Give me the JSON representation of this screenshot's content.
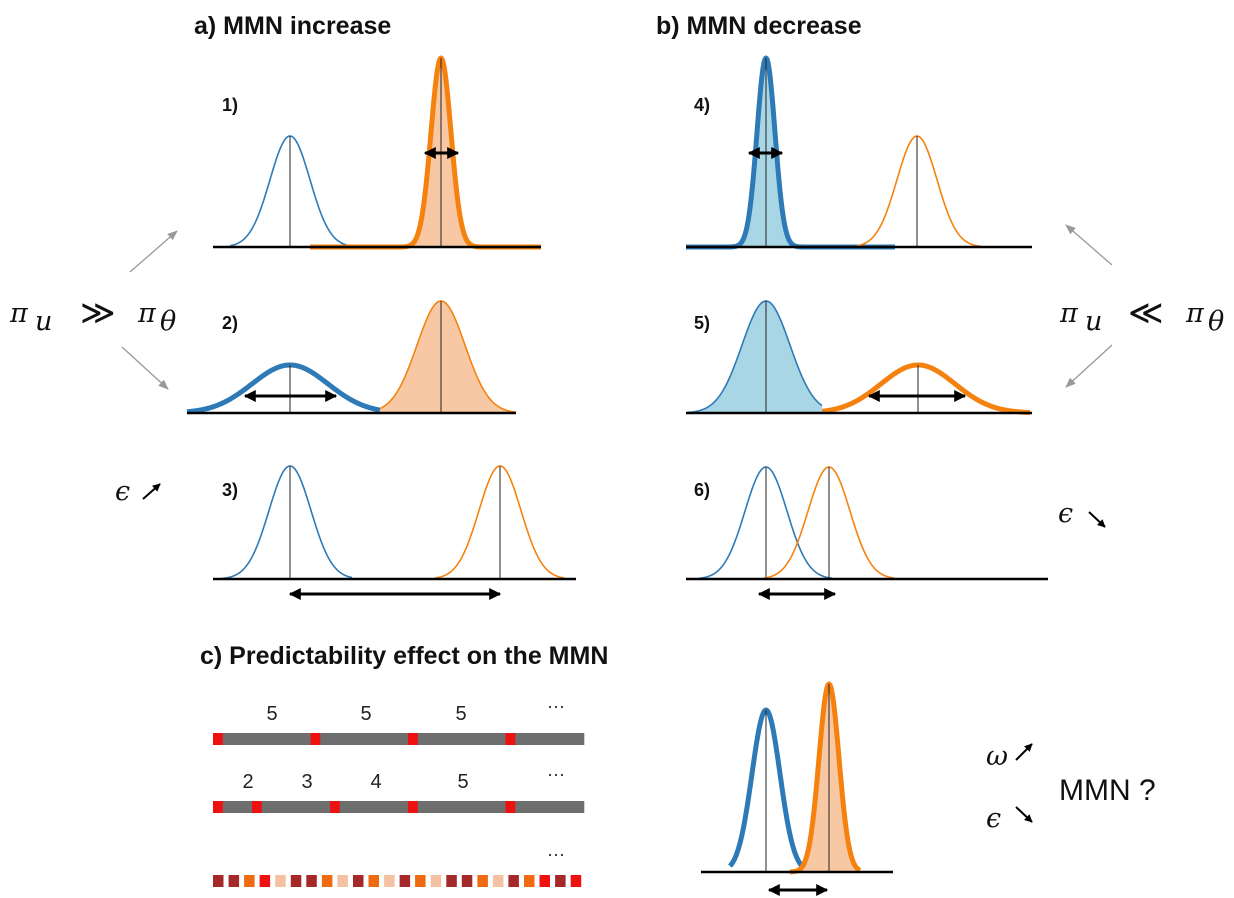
{
  "headings": {
    "a": "a) MMN increase",
    "b": "b) MMN decrease",
    "c": "c) Predictability effect on the MMN"
  },
  "panel_labels": [
    "1)",
    "2)",
    "3)",
    "4)",
    "5)",
    "6)"
  ],
  "math": {
    "left": {
      "pi_u": "π",
      "sub_u": "u",
      "relation": "≫",
      "pi_theta": "π",
      "sub_theta": "θ",
      "epsilon": "ϵ",
      "epsilon_arrow": "up"
    },
    "right": {
      "pi_u": "π",
      "sub_u": "u",
      "relation": "≪",
      "pi_theta": "π",
      "sub_theta": "θ",
      "epsilon": "ϵ",
      "epsilon_arrow": "down"
    },
    "c": {
      "omega": "ω",
      "omega_arrow": "up",
      "epsilon": "ϵ",
      "epsilon_arrow": "down",
      "mmn_question": "MMN ?"
    }
  },
  "sequences": {
    "row1": {
      "labels": [
        "5",
        "5",
        "5",
        "···"
      ],
      "colors": [
        "R",
        "G",
        "G",
        "G",
        "G",
        "G",
        "G",
        "G",
        "G",
        "G",
        "R",
        "G",
        "G",
        "G",
        "G",
        "G",
        "G",
        "G",
        "G",
        "G",
        "R",
        "G",
        "G",
        "G",
        "G",
        "G",
        "G",
        "G",
        "G",
        "G",
        "R",
        "G",
        "G",
        "G",
        "G",
        "G",
        "G",
        "G"
      ]
    },
    "row2": {
      "labels": [
        "2",
        "3",
        "4",
        "5",
        "···"
      ],
      "colors": [
        "R",
        "G",
        "G",
        "G",
        "R",
        "G",
        "G",
        "G",
        "G",
        "G",
        "G",
        "G",
        "R",
        "G",
        "G",
        "G",
        "G",
        "G",
        "G",
        "G",
        "R",
        "G",
        "G",
        "G",
        "G",
        "G",
        "G",
        "G",
        "G",
        "G",
        "R",
        "G",
        "G",
        "G",
        "G",
        "G",
        "G",
        "G"
      ]
    },
    "row3": {
      "labels": [
        "···"
      ],
      "colors": [
        "DR",
        "DR",
        "O",
        "R",
        "PK",
        "DR",
        "DR",
        "O",
        "PK",
        "DR",
        "O",
        "PK",
        "DR",
        "O",
        "PK",
        "DR",
        "DR",
        "O",
        "PK",
        "DR",
        "O",
        "R",
        "DR",
        "R"
      ]
    }
  },
  "colors": {
    "blue": "#2e7ab6",
    "orange": "#f5820f",
    "blue_fill": "#a9d6e5",
    "orange_fill": "#f8c8a4",
    "seq_gray": "#6e6e6e",
    "seq_red": "#ef1010",
    "seq_dark_red": "#a5292b",
    "seq_orange": "#f06a12",
    "seq_pink": "#f4c1a3"
  }
}
